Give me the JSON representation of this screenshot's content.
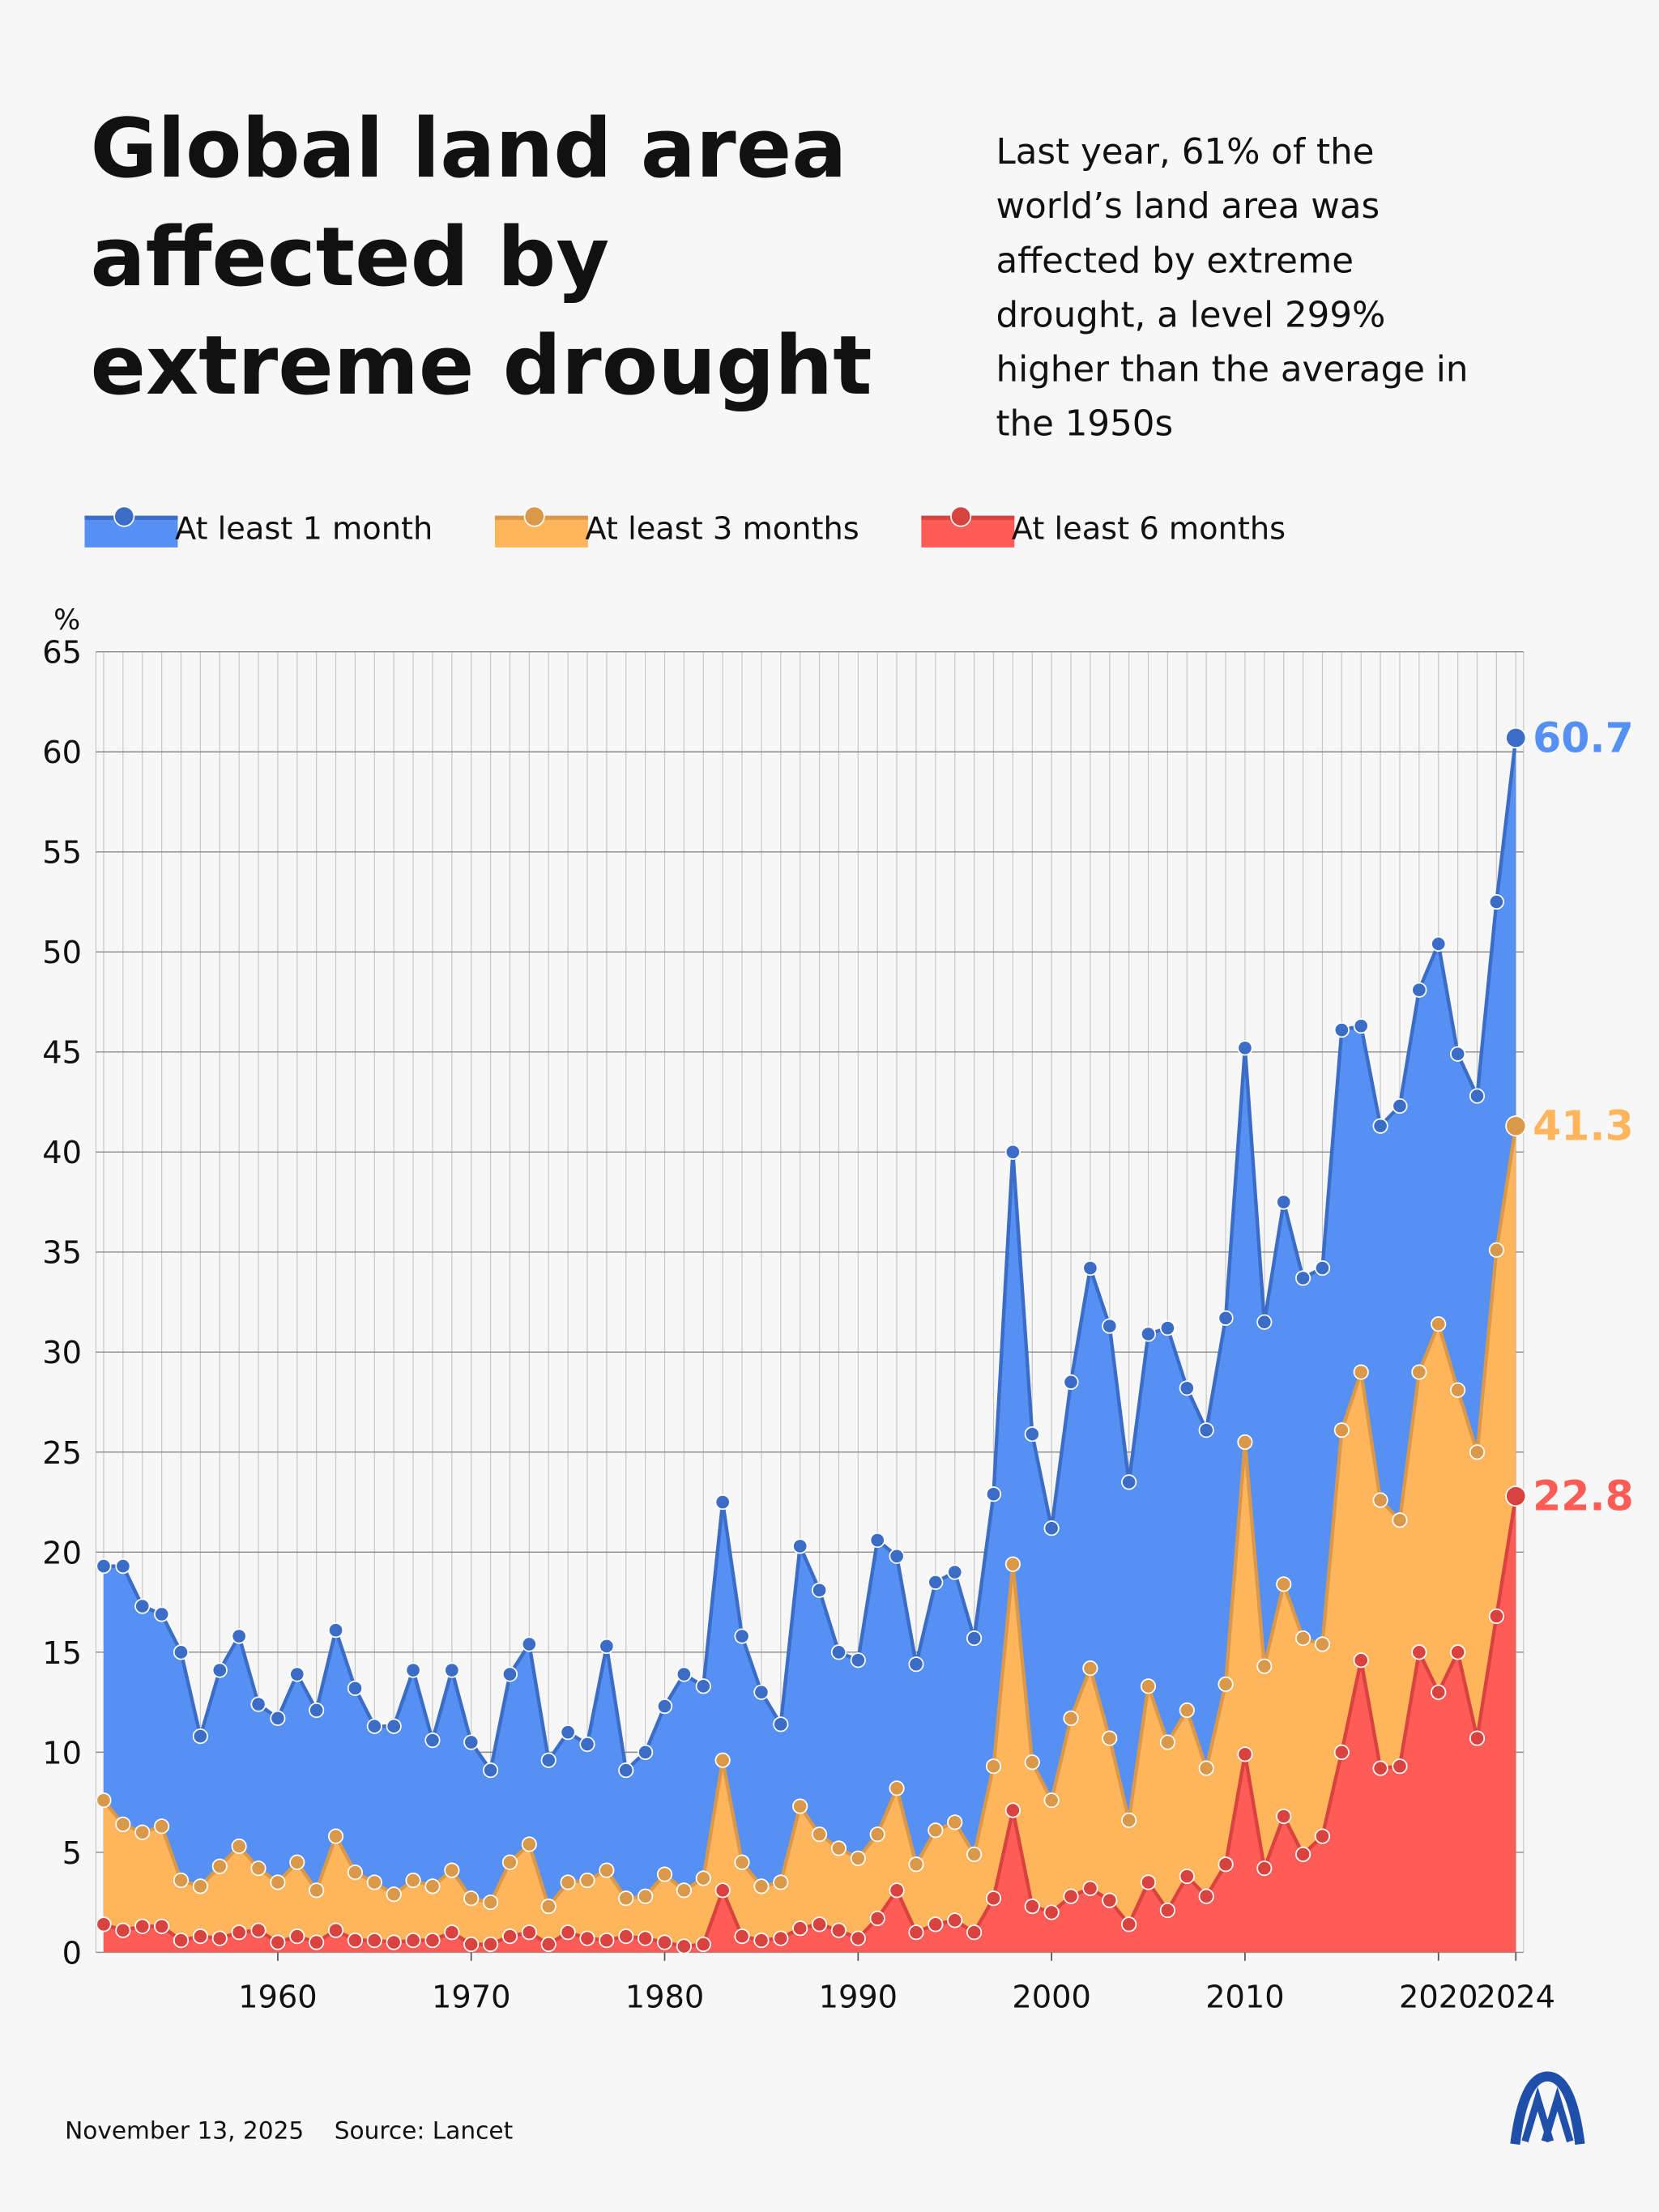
{
  "chart_data": {
    "type": "area",
    "title": "Global land area affected by extreme drought",
    "subtitle": "Last year, 61% of the world’s land area was affected by extreme drought, a level 299% higher than the average in the 1950s",
    "y_unit": "%",
    "date": "November 13, 2025",
    "source": "Source: Lancet",
    "x": [
      1951,
      1952,
      1953,
      1954,
      1955,
      1956,
      1957,
      1958,
      1959,
      1960,
      1961,
      1962,
      1963,
      1964,
      1965,
      1966,
      1967,
      1968,
      1969,
      1970,
      1971,
      1972,
      1973,
      1974,
      1975,
      1976,
      1977,
      1978,
      1979,
      1980,
      1981,
      1982,
      1983,
      1984,
      1985,
      1986,
      1987,
      1988,
      1989,
      1990,
      1991,
      1992,
      1993,
      1994,
      1995,
      1996,
      1997,
      1998,
      1999,
      2000,
      2001,
      2002,
      2003,
      2004,
      2005,
      2006,
      2007,
      2008,
      2009,
      2010,
      2011,
      2012,
      2013,
      2014,
      2015,
      2016,
      2017,
      2018,
      2019,
      2020,
      2021,
      2022,
      2023,
      2024
    ],
    "series": [
      {
        "name": "At least 1 month",
        "color": "#5590f2",
        "values": [
          19.3,
          19.3,
          17.3,
          16.9,
          15.0,
          10.8,
          14.1,
          15.8,
          12.4,
          11.7,
          13.9,
          12.1,
          16.1,
          13.2,
          11.3,
          11.3,
          14.1,
          10.6,
          14.1,
          10.5,
          9.1,
          13.9,
          15.4,
          9.6,
          11.0,
          10.4,
          15.3,
          9.1,
          10.0,
          12.3,
          13.9,
          13.3,
          22.5,
          15.8,
          13.0,
          11.4,
          20.3,
          18.1,
          15.0,
          14.6,
          20.6,
          19.8,
          14.4,
          18.5,
          19.0,
          15.7,
          22.9,
          40.0,
          25.9,
          21.2,
          28.5,
          34.2,
          31.3,
          23.5,
          30.9,
          31.2,
          28.2,
          26.1,
          31.7,
          45.2,
          31.5,
          37.5,
          33.7,
          34.2,
          46.1,
          46.3,
          41.3,
          42.3,
          48.1,
          50.4,
          44.9,
          42.8,
          52.5,
          60.7
        ]
      },
      {
        "name": "At least 3 months",
        "color": "#ffb55c",
        "values": [
          7.6,
          6.4,
          6.0,
          6.3,
          3.6,
          3.3,
          4.3,
          5.3,
          4.2,
          3.5,
          4.5,
          3.1,
          5.8,
          4.0,
          3.5,
          2.9,
          3.6,
          3.3,
          4.1,
          2.7,
          2.5,
          4.5,
          5.4,
          2.3,
          3.5,
          3.6,
          4.1,
          2.7,
          2.8,
          3.9,
          3.1,
          3.7,
          9.6,
          4.5,
          3.3,
          3.5,
          7.3,
          5.9,
          5.2,
          4.7,
          5.9,
          8.2,
          4.4,
          6.1,
          6.5,
          4.9,
          9.3,
          19.4,
          9.5,
          7.6,
          11.7,
          14.2,
          10.7,
          6.6,
          13.3,
          10.5,
          12.1,
          9.2,
          13.4,
          25.5,
          14.3,
          18.4,
          15.7,
          15.4,
          26.1,
          29.0,
          22.6,
          21.6,
          29.0,
          31.4,
          28.1,
          25.0,
          35.1,
          41.3
        ]
      },
      {
        "name": "At least 6 months",
        "color": "#ff5c57",
        "values": [
          1.4,
          1.1,
          1.3,
          1.3,
          0.6,
          0.8,
          0.7,
          1.0,
          1.1,
          0.5,
          0.8,
          0.5,
          1.1,
          0.6,
          0.6,
          0.5,
          0.6,
          0.6,
          1.0,
          0.4,
          0.4,
          0.8,
          1.0,
          0.4,
          1.0,
          0.7,
          0.6,
          0.8,
          0.7,
          0.5,
          0.3,
          0.4,
          3.1,
          0.8,
          0.6,
          0.7,
          1.2,
          1.4,
          1.1,
          0.7,
          1.7,
          3.1,
          1.0,
          1.4,
          1.6,
          1.0,
          2.7,
          7.1,
          2.3,
          2.0,
          2.8,
          3.2,
          2.6,
          1.4,
          3.5,
          2.1,
          3.8,
          2.8,
          4.4,
          9.9,
          4.2,
          6.8,
          4.9,
          5.8,
          10.0,
          14.6,
          9.2,
          9.3,
          15.0,
          13.0,
          15.0,
          10.7,
          16.8,
          22.8
        ]
      }
    ],
    "line_colors": [
      "#3b6cc6",
      "#d9984a",
      "#d8423f"
    ],
    "xlim": [
      1950.6,
      2024.4
    ],
    "xticks": [
      1960,
      1970,
      1980,
      1990,
      2000,
      2010,
      2020,
      2024
    ],
    "ylim": [
      0,
      65
    ],
    "yticks": [
      0,
      5,
      10,
      15,
      20,
      25,
      30,
      35,
      40,
      45,
      50,
      55,
      60,
      65
    ],
    "grid": true
  }
}
